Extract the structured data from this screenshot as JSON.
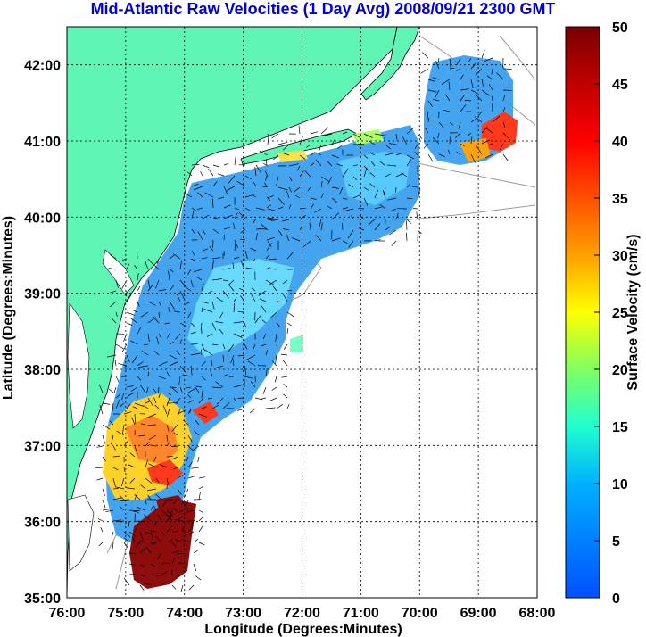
{
  "title": "Mid-Atlantic Raw Velocities (1 Day Avg) 2008/09/21 2300 GMT",
  "colors": {
    "title": "#0000dd",
    "land": "#5ff5b4",
    "ocean": "#ffffff",
    "grid": "#000000"
  },
  "map": {
    "xlabel": "Longitude (Degrees:Minutes)",
    "ylabel": "Latitude (Degrees:Minutes)",
    "x_ticks": [
      "76:00",
      "75:00",
      "74:00",
      "73:00",
      "72:00",
      "71:00",
      "70:00",
      "69:00",
      "68:00"
    ],
    "y_ticks": [
      "42:00",
      "41:00",
      "40:00",
      "39:00",
      "38:00",
      "37:00",
      "36:00",
      "35:00"
    ],
    "lon_range": [
      -76,
      -68
    ],
    "lat_range": [
      35,
      42.5
    ]
  },
  "colorbar": {
    "label": "Surface Velocity (cm/s)",
    "ticks": [
      "50",
      "45",
      "40",
      "35",
      "30",
      "25",
      "20",
      "15",
      "10",
      "5",
      "0"
    ],
    "range": [
      0,
      50
    ]
  }
}
